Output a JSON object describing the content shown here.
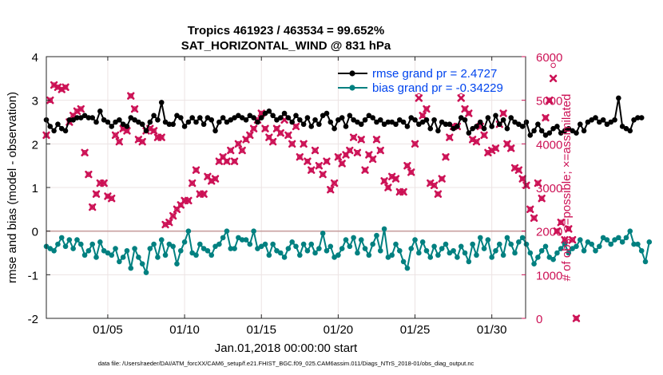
{
  "chart_data": {
    "type": "line",
    "title": "Tropics 461923 / 463534 = 99.652%",
    "subtitle": "SAT_HORIZONTAL_WIND @ 831 hPa",
    "xlabel": "Jan.01,2018 00:00:00 start",
    "ylabel_left": "rmse and bias (model - observation)",
    "ylabel_right": "# of obs: o=possible; ×=assimilated",
    "footer": "data file: /Users/raeder/DAI/ATM_forcXX/CAM6_setup/f.e21.FHIST_BGC.f09_025.CAM6assim.011/Diags_NTrS_2018-01/obs_diag_output.nc",
    "xlim": [
      1,
      32.2
    ],
    "ylim_left": [
      -2,
      4
    ],
    "ylim_right": [
      0,
      6000
    ],
    "x_tick_values": [
      5,
      10,
      15,
      20,
      25,
      30
    ],
    "x_tick_labels": [
      "01/05",
      "01/10",
      "01/15",
      "01/20",
      "01/25",
      "01/30"
    ],
    "y_left_ticks": [
      "4",
      "3",
      "2",
      "1",
      "0",
      "-1",
      "-2"
    ],
    "y_right_ticks": [
      "6000",
      "5000",
      "4000",
      "3000",
      "2000",
      "1000",
      "0"
    ],
    "grid": true,
    "legend": {
      "position": "top-right",
      "rmse_label": "rmse grand pr = 2.4727",
      "bias_label": "bias grand pr = -0.34229"
    },
    "colors": {
      "rmse": "#000000",
      "bias": "#008080",
      "obs": "#cc1155",
      "legend_text": "#0044ee",
      "zero_line": "#c8a0a0"
    },
    "x_start": 1.0,
    "x_step": 0.25,
    "series": [
      {
        "name": "rmse",
        "axis": "left",
        "values": [
          2.55,
          2.4,
          2.3,
          2.45,
          2.35,
          2.3,
          2.55,
          2.55,
          2.6,
          2.6,
          2.65,
          2.6,
          2.6,
          2.5,
          2.75,
          2.55,
          2.5,
          2.4,
          2.5,
          2.55,
          2.45,
          2.4,
          2.6,
          2.55,
          2.5,
          2.45,
          2.3,
          2.5,
          2.65,
          2.55,
          2.95,
          2.5,
          2.45,
          2.45,
          2.65,
          2.6,
          2.4,
          2.5,
          2.6,
          2.5,
          2.6,
          2.45,
          2.6,
          2.55,
          2.3,
          2.5,
          2.6,
          2.5,
          2.55,
          2.6,
          2.65,
          2.6,
          2.55,
          2.65,
          2.6,
          2.5,
          2.6,
          2.7,
          2.75,
          2.65,
          2.55,
          2.6,
          2.7,
          2.6,
          2.5,
          2.65,
          2.55,
          2.45,
          2.6,
          2.4,
          2.55,
          2.45,
          2.65,
          2.7,
          2.5,
          2.35,
          2.55,
          2.6,
          2.4,
          2.65,
          2.55,
          2.5,
          2.45,
          2.55,
          2.65,
          2.6,
          2.5,
          2.55,
          2.45,
          2.5,
          2.5,
          2.45,
          2.55,
          2.5,
          2.4,
          2.6,
          2.55,
          2.45,
          2.5,
          2.55,
          2.35,
          2.55,
          2.3,
          2.5,
          2.45,
          2.45,
          2.35,
          2.4,
          2.6,
          2.55,
          2.25,
          2.35,
          2.4,
          2.5,
          2.35,
          2.6,
          2.4,
          2.65,
          2.45,
          2.55,
          2.35,
          2.6,
          2.5,
          2.45,
          2.4,
          2.5,
          2.2,
          2.3,
          2.45,
          2.3,
          2.2,
          2.25,
          2.35,
          2.4,
          2.25,
          2.3,
          2.35,
          2.3,
          2.25,
          2.45,
          2.3,
          2.5,
          2.55,
          2.6,
          2.5,
          2.55,
          2.45,
          2.5,
          2.55,
          3.05,
          2.4,
          2.35,
          2.3,
          2.55,
          2.6,
          2.6
        ]
      },
      {
        "name": "bias",
        "axis": "left",
        "values": [
          -0.35,
          -0.4,
          -0.45,
          -0.3,
          -0.15,
          -0.35,
          -0.2,
          -0.4,
          -0.2,
          -0.3,
          -0.55,
          -0.45,
          -0.3,
          -0.6,
          -0.25,
          -0.45,
          -0.5,
          -0.55,
          -0.4,
          -0.7,
          -0.6,
          -0.45,
          -0.85,
          -0.4,
          -0.6,
          -0.75,
          -0.95,
          -0.4,
          -0.3,
          -0.6,
          -0.2,
          -0.55,
          -0.3,
          -0.35,
          -0.75,
          -0.45,
          -0.25,
          0.0,
          -0.5,
          -0.55,
          -0.3,
          -0.4,
          -0.45,
          -0.55,
          -0.35,
          -0.3,
          -0.15,
          0.0,
          -0.4,
          -0.4,
          -0.15,
          -0.2,
          -0.2,
          -0.3,
          0.0,
          -0.4,
          -0.35,
          -0.3,
          -0.55,
          -0.3,
          -0.45,
          -0.5,
          -0.6,
          -0.4,
          -0.25,
          -0.35,
          -0.55,
          -0.3,
          -0.45,
          -0.3,
          -0.5,
          -0.4,
          -0.05,
          -0.45,
          -0.35,
          -0.6,
          -0.55,
          -0.4,
          -0.2,
          -0.35,
          -0.15,
          -0.5,
          -0.2,
          -0.4,
          -0.55,
          -0.3,
          -0.1,
          -0.45,
          0.05,
          -0.6,
          -0.55,
          -0.3,
          -0.45,
          -0.7,
          -0.85,
          -0.4,
          -0.2,
          -0.5,
          -0.25,
          -0.45,
          -0.6,
          -0.35,
          -0.55,
          -0.4,
          -0.3,
          -0.5,
          -0.45,
          -0.6,
          -0.35,
          -0.5,
          -0.7,
          -0.3,
          -0.55,
          -0.15,
          -0.4,
          -0.2,
          -0.6,
          -0.45,
          -0.3,
          -0.55,
          -0.15,
          -0.3,
          -0.5,
          -0.25,
          -0.15,
          -0.3,
          -0.5,
          -0.75,
          -0.6,
          -0.45,
          -0.35,
          -0.6,
          -0.65,
          -0.5,
          -0.4,
          -0.3,
          -0.5,
          -0.4,
          -0.35,
          -0.2,
          -0.45,
          -0.25,
          -0.3,
          -0.45,
          -0.35,
          -0.15,
          -0.2,
          -0.3,
          -0.2,
          -0.15,
          -0.25,
          -0.15,
          0.0,
          -0.3,
          -0.3,
          -0.45,
          -0.7,
          -0.25
        ]
      },
      {
        "name": "obs_possible",
        "axis": "right",
        "values": [
          4200,
          5000,
          5350,
          5300,
          5250,
          5300,
          4500,
          4650,
          4750,
          4800,
          3800,
          3300,
          2550,
          2850,
          3100,
          3100,
          2800,
          2750,
          4200,
          4050,
          4350,
          4300,
          5100,
          4800,
          4100,
          4050,
          4300,
          4350,
          4300,
          4150,
          4150,
          2150,
          2200,
          2350,
          2500,
          2600,
          2700,
          2700,
          3100,
          3400,
          2850,
          2850,
          3250,
          3150,
          3200,
          3600,
          3700,
          3600,
          3850,
          3600,
          4000,
          3850,
          4100,
          4200,
          4350,
          4550,
          4700,
          4350,
          4150,
          4050,
          4350,
          4250,
          4600,
          4200,
          4000,
          4400,
          3700,
          4000,
          3600,
          3400,
          3850,
          3500,
          3300,
          3600,
          2950,
          3100,
          3700,
          3550,
          3750,
          3850,
          4150,
          3800,
          4100,
          3400,
          3750,
          3650,
          4100,
          3850,
          3150,
          3000,
          3250,
          3200,
          2900,
          2900,
          3500,
          3350,
          4000,
          5100,
          4650,
          4800,
          3100,
          3050,
          2850,
          3200,
          3700,
          4150,
          4400,
          4400,
          5100,
          4800,
          4700,
          4100,
          4050,
          4400,
          4200,
          3800,
          3850,
          3900,
          4450,
          4700,
          4000,
          3900,
          3450,
          3400,
          3200,
          3050,
          2500,
          2300,
          3100,
          2750,
          4600,
          5000,
          5800,
          2000,
          2200,
          1800,
          2050,
          1800,
          0
        ]
      },
      {
        "name": "obs_assimilated",
        "axis": "right",
        "values": [
          4200,
          5000,
          5350,
          5300,
          5250,
          5300,
          4500,
          4650,
          4750,
          4800,
          3800,
          3300,
          2550,
          2850,
          3100,
          3100,
          2800,
          2750,
          4200,
          4050,
          4350,
          4300,
          5100,
          4800,
          4100,
          4050,
          4300,
          4350,
          4300,
          4150,
          4150,
          2150,
          2200,
          2350,
          2500,
          2600,
          2700,
          2700,
          3100,
          3400,
          2850,
          2850,
          3250,
          3150,
          3200,
          3600,
          3700,
          3600,
          3850,
          3600,
          4000,
          3850,
          4100,
          4200,
          4350,
          4550,
          4700,
          4350,
          4150,
          4050,
          4350,
          4250,
          4550,
          4200,
          4000,
          4400,
          3700,
          4000,
          3600,
          3400,
          3850,
          3500,
          3300,
          3600,
          2950,
          3100,
          3700,
          3550,
          3750,
          3850,
          4150,
          3800,
          4100,
          3400,
          3750,
          3650,
          4100,
          3850,
          3150,
          3000,
          3250,
          3200,
          2900,
          2900,
          3500,
          3350,
          4000,
          5050,
          4650,
          4800,
          3100,
          3050,
          2850,
          3200,
          3700,
          4150,
          4400,
          4400,
          5050,
          4800,
          4700,
          4100,
          4050,
          4400,
          4200,
          3800,
          3850,
          3900,
          4450,
          4700,
          4000,
          3900,
          3450,
          3400,
          3200,
          3050,
          2500,
          2300,
          3100,
          2750,
          4600,
          5000,
          5500,
          2000,
          2200,
          1800,
          2050,
          1800,
          0
        ]
      }
    ]
  }
}
